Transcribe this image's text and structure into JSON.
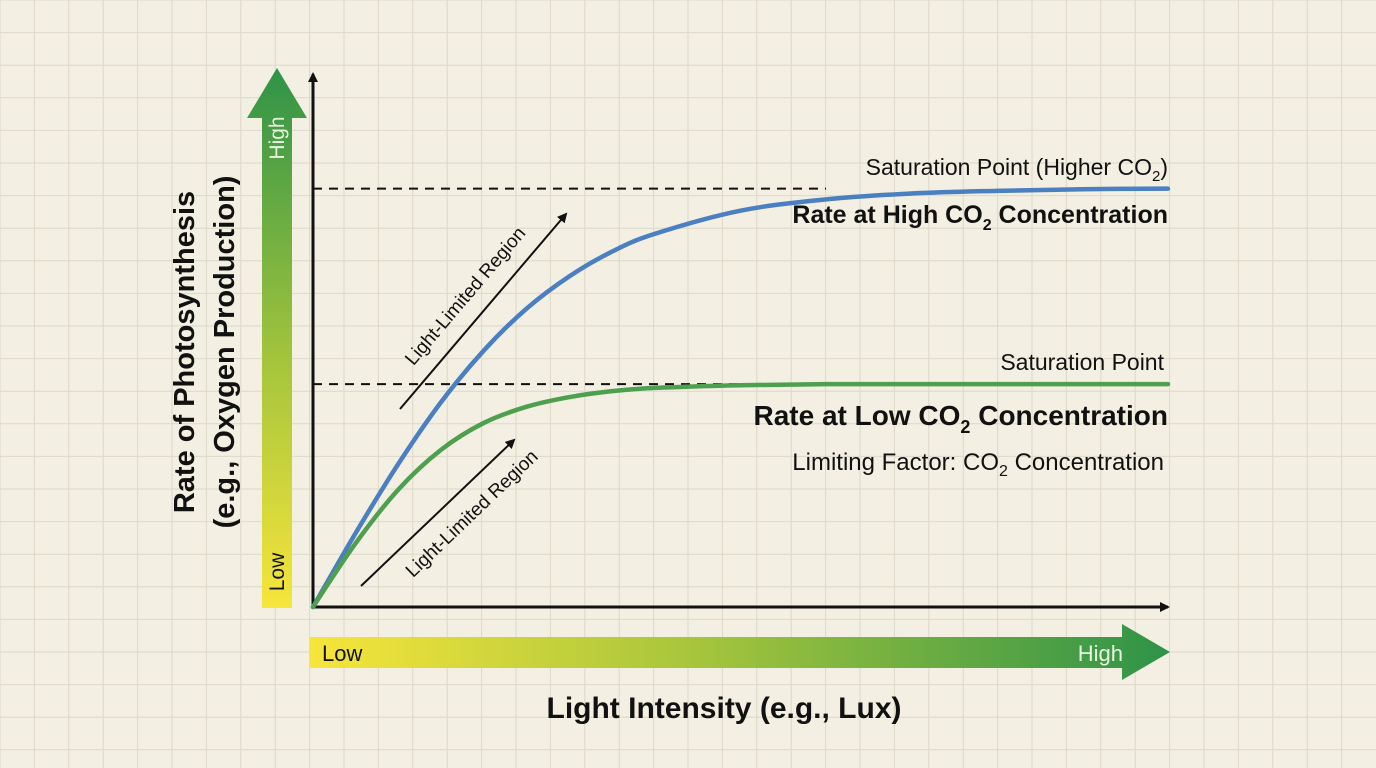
{
  "chart_data": {
    "type": "line",
    "title": "",
    "xlabel": "Light Intensity (e.g., Lux)",
    "ylabel_lines": [
      "Rate of Photosynthesis",
      "(e.g., Oxygen Production)"
    ],
    "xlim": [
      0,
      10
    ],
    "ylim": [
      0,
      10
    ],
    "grid": true,
    "x_scale": {
      "low": "Low",
      "high": "High"
    },
    "y_scale": {
      "low": "Low",
      "high": "High"
    },
    "x": [
      0,
      0.5,
      1,
      1.5,
      2,
      2.5,
      3,
      3.5,
      4,
      5,
      6,
      7,
      8,
      9,
      10
    ],
    "series": [
      {
        "name": "Rate at High CO2 Concentration",
        "label_main": "Rate at High CO",
        "label_sub": "2",
        "label_end": " Concentration",
        "color": "#4a7fc1",
        "values": [
          0,
          1.38,
          2.67,
          3.82,
          4.78,
          5.56,
          6.16,
          6.62,
          6.95,
          7.38,
          7.59,
          7.7,
          7.75,
          7.78,
          7.79
        ],
        "saturation": 7.79,
        "saturation_label": {
          "main": "Saturation Point (Higher CO",
          "sub": "2",
          "end": ")"
        }
      },
      {
        "name": "Rate at Low CO2 Concentration",
        "label_main": "Rate at Low CO",
        "label_sub": "2",
        "label_end": " Concentration",
        "color": "#4ea04f",
        "values": [
          0,
          1.19,
          2.19,
          2.93,
          3.43,
          3.73,
          3.91,
          4.02,
          4.08,
          4.13,
          4.15,
          4.15,
          4.15,
          4.15,
          4.15
        ],
        "saturation": 4.15,
        "saturation_label": {
          "main": "Saturation Point",
          "sub": "",
          "end": ""
        }
      }
    ],
    "annotations": [
      {
        "text": "Light-Limited Region",
        "series": "Rate at High CO2 Concentration"
      },
      {
        "text": "Light-Limited Region",
        "series": "Rate at Low CO2 Concentration"
      },
      {
        "text_main": "Limiting Factor: CO",
        "text_sub": "2",
        "text_end": " Concentration"
      }
    ],
    "colors": {
      "gradient_low": "#f7e53b",
      "gradient_high": "#2e9348",
      "axis": "#111111",
      "background": "#f3efe2",
      "grid": "#ddd8c8"
    }
  }
}
